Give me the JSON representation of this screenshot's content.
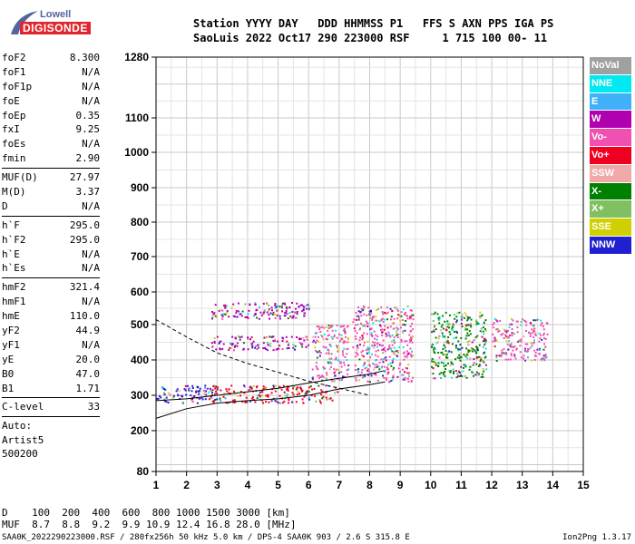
{
  "logo": {
    "line1": "Lowell",
    "line2": "DIGISONDE"
  },
  "header": {
    "row1": "Station YYYY DAY   DDD HHMMSS P1   FFS S AXN PPS IGA PS",
    "row2": "SaoLuis 2022 Oct17 290 223000 RSF     1 715 100 00- 11"
  },
  "params_group1": [
    {
      "k": "foF2",
      "v": "8.300"
    },
    {
      "k": "foF1",
      "v": "N/A"
    },
    {
      "k": "foF1p",
      "v": "N/A"
    },
    {
      "k": "foE",
      "v": "N/A"
    },
    {
      "k": "foEp",
      "v": "0.35"
    },
    {
      "k": "fxI",
      "v": "9.25"
    },
    {
      "k": "foEs",
      "v": "N/A"
    },
    {
      "k": "fmin",
      "v": "2.90"
    }
  ],
  "params_group2": [
    {
      "k": "MUF(D)",
      "v": "27.97"
    },
    {
      "k": "M(D)",
      "v": "3.37"
    },
    {
      "k": "D",
      "v": "N/A"
    }
  ],
  "params_group3": [
    {
      "k": "h`F",
      "v": "295.0"
    },
    {
      "k": "h`F2",
      "v": "295.0"
    },
    {
      "k": "h`E",
      "v": "N/A"
    },
    {
      "k": "h`Es",
      "v": "N/A"
    }
  ],
  "params_group4": [
    {
      "k": "hmF2",
      "v": "321.4"
    },
    {
      "k": "hmF1",
      "v": "N/A"
    },
    {
      "k": "hmE",
      "v": "110.0"
    },
    {
      "k": "yF2",
      "v": "44.9"
    },
    {
      "k": "yF1",
      "v": "N/A"
    },
    {
      "k": "yE",
      "v": "20.0"
    },
    {
      "k": "B0",
      "v": "47.0"
    },
    {
      "k": "B1",
      "v": "1.71"
    }
  ],
  "params_group5": [
    {
      "k": "C-level",
      "v": "33"
    }
  ],
  "auto": {
    "line1": "Auto:",
    "line2": "Artist5",
    "line3": "500200"
  },
  "legend": [
    {
      "label": "NoVal",
      "color": "#a0a0a0"
    },
    {
      "label": "NNE",
      "color": "#00e8f0"
    },
    {
      "label": "E",
      "color": "#40b0f8"
    },
    {
      "label": "W",
      "color": "#b000b0"
    },
    {
      "label": "Vo-",
      "color": "#f050b0"
    },
    {
      "label": "Vo+",
      "color": "#f00020"
    },
    {
      "label": "SSW",
      "color": "#f0a8a8"
    },
    {
      "label": "X-",
      "color": "#008000"
    },
    {
      "label": "X+",
      "color": "#80c060"
    },
    {
      "label": "SSE",
      "color": "#d0d000"
    },
    {
      "label": "NNW",
      "color": "#2020d0"
    }
  ],
  "chart_data": {
    "type": "scatter",
    "xlabel": "",
    "ylabel": "",
    "x_ticks": [
      "1",
      "2",
      "3",
      "4",
      "5",
      "6",
      "7",
      "8",
      "9",
      "10",
      "11",
      "12",
      "13",
      "14",
      "15"
    ],
    "y_ticks": [
      "1280",
      "1100",
      "1000",
      "900",
      "800",
      "700",
      "600",
      "500",
      "400",
      "300",
      "200",
      "80"
    ],
    "xlim": [
      1,
      15
    ],
    "ylim": [
      80,
      1280
    ],
    "y_scale": "nonlinear",
    "grid": true,
    "traces": [
      {
        "name": "",
        "style": "solid",
        "points": [
          [
            1,
            235
          ],
          [
            2,
            262
          ],
          [
            3,
            278
          ],
          [
            4,
            285
          ],
          [
            5,
            290
          ],
          [
            6,
            300
          ],
          [
            7,
            318
          ],
          [
            8,
            330
          ],
          [
            8.5,
            338
          ]
        ]
      },
      {
        "name": "",
        "style": "solid",
        "points": [
          [
            1,
            285
          ],
          [
            2,
            290
          ],
          [
            3,
            300
          ],
          [
            4,
            310
          ],
          [
            5,
            320
          ],
          [
            6,
            335
          ],
          [
            7,
            348
          ],
          [
            8,
            360
          ],
          [
            8.5,
            370
          ]
        ]
      },
      {
        "name": "",
        "style": "dashed",
        "points": [
          [
            1,
            515
          ],
          [
            2,
            465
          ],
          [
            3,
            420
          ],
          [
            4,
            390
          ],
          [
            5,
            365
          ],
          [
            6,
            340
          ],
          [
            7,
            320
          ],
          [
            8,
            300
          ]
        ]
      }
    ],
    "echo_regions": [
      {
        "f": [
          1.0,
          3.0
        ],
        "h": [
          280,
          330
        ],
        "color": "#2020d0"
      },
      {
        "f": [
          2.8,
          7.0
        ],
        "h": [
          280,
          330
        ],
        "color": "#f00020"
      },
      {
        "f": [
          2.8,
          6.0
        ],
        "h": [
          430,
          470
        ],
        "color": "#b000b0"
      },
      {
        "f": [
          2.8,
          6.0
        ],
        "h": [
          520,
          570
        ],
        "color": "#b000b0"
      },
      {
        "f": [
          6.1,
          7.3
        ],
        "h": [
          340,
          500
        ],
        "color": "#f050b0"
      },
      {
        "f": [
          7.4,
          9.4
        ],
        "h": [
          340,
          560
        ],
        "color": "#f050b0"
      },
      {
        "f": [
          10.0,
          11.8
        ],
        "h": [
          350,
          540
        ],
        "color": "#008000"
      },
      {
        "f": [
          12.0,
          13.8
        ],
        "h": [
          400,
          520
        ],
        "color": "#f050b0"
      }
    ]
  },
  "dtable": {
    "row1": "D    100  200  400  600  800 1000 1500 3000 [km]",
    "row2": "MUF  8.7  8.8  9.2  9.9 10.9 12.4 16.8 28.0 [MHz]"
  },
  "footer": {
    "left": "SAA0K_2022290223000.RSF / 280fx256h 50 kHz 5.0 km / DPS-4 SAA0K 903 / 2.6 S 315.8 E",
    "right": "Ion2Png 1.3.17"
  }
}
